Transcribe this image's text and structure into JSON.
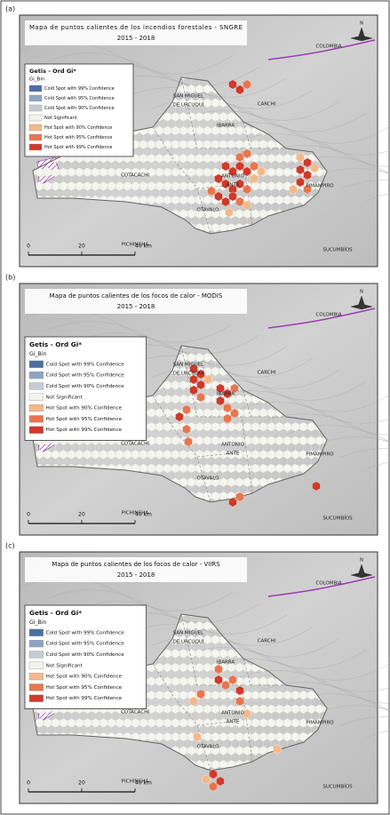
{
  "panels": [
    {
      "label": "(a)",
      "title": "Mapa de puntos calientes de los incendios forestales - SNGRE",
      "subtitle": "2015 - 2018",
      "legend": {
        "title": "Getis - Ord Gi*",
        "field": "Gi_Bin",
        "items": [
          {
            "label": "Cold Spot with 99% Confidence",
            "color": "#4a6fa5"
          },
          {
            "label": "Cold Spot with 95% Confidence",
            "color": "#8ea4c2"
          },
          {
            "label": "Cold Spot with 90% Confidence",
            "color": "#c4cdd6"
          },
          {
            "label": "Not Significant",
            "color": "#f4f4ee"
          },
          {
            "label": "Hot Spot with 90% Confidence",
            "color": "#f4b98a"
          },
          {
            "label": "Hot Spot with 95% Confidence",
            "color": "#e7764e"
          },
          {
            "label": "Hot Spot with 99% Confidence",
            "color": "#cf3a2a"
          }
        ]
      },
      "places": [
        "COLOMBIA",
        "SAN MIGUEL",
        "DE URCUQUÍ",
        "IBARRA",
        "CARCHI",
        "COTACACHI",
        "ANTONIO",
        "ANTE",
        "PIMAMPIRO",
        "OTAVALO",
        "PICHINCHA",
        "SUCUMBÍOS"
      ],
      "scale": [
        "0",
        "20",
        "40 km"
      ],
      "north": "N"
    },
    {
      "label": "(b)",
      "title": "Mapa de puntos calientes de los focos de calor - MODIS",
      "subtitle": "2015 - 2018",
      "legend": {
        "title": "Getis - Ord Gi*",
        "field": "Gi_Bin",
        "items": [
          {
            "label": "Cold Spot with 99% Confidence",
            "color": "#4a6fa5"
          },
          {
            "label": "Cold Spot with 95% Confidence",
            "color": "#8ea4c2"
          },
          {
            "label": "Cold Spot with 90% Confidence",
            "color": "#c4cdd6"
          },
          {
            "label": "Not Significant",
            "color": "#f4f4ee"
          },
          {
            "label": "Hot Spot with 90% Confidence",
            "color": "#f4b98a"
          },
          {
            "label": "Hot Spot with 95% Confidence",
            "color": "#e7764e"
          },
          {
            "label": "Hot Spot with 99% Confidence",
            "color": "#cf3a2a"
          }
        ]
      },
      "places": [
        "COLOMBIA",
        "SAN MIGUEL",
        "DE URCUQUÍ",
        "IBARRA",
        "CARCHI",
        "COTACACHI",
        "ANTONIO",
        "ANTE",
        "PIMAMPIRO",
        "OTAVALO",
        "PICHINCHA",
        "SUCUMBÍOS"
      ],
      "scale": [
        "0",
        "20",
        "40 km"
      ],
      "north": "N"
    },
    {
      "label": "(c)",
      "title": "Mapa de puntos calientes de los focos de calor - VIIRS",
      "subtitle": "2015 - 2018",
      "legend": {
        "title": "Getis - Ord Gi*",
        "field": "Gi_Bin",
        "items": [
          {
            "label": "Cold Spot with 99% Confidence",
            "color": "#4a6fa5"
          },
          {
            "label": "Cold Spot with 95% Confidence",
            "color": "#8ea4c2"
          },
          {
            "label": "Cold Spot with 90% Confidence",
            "color": "#c4cdd6"
          },
          {
            "label": "Not Significant",
            "color": "#f4f4ee"
          },
          {
            "label": "Hot Spot with 90% Confidence",
            "color": "#f4b98a"
          },
          {
            "label": "Hot Spot with 95% Confidence",
            "color": "#e7764e"
          },
          {
            "label": "Hot Spot with 99% Confidence",
            "color": "#cf3a2a"
          }
        ]
      },
      "places": [
        "COLOMBIA",
        "SAN MIGUEL",
        "DE URCUQUÍ",
        "IBARRA",
        "CARCHI",
        "COTACACHI",
        "ANTONIO",
        "ANTE",
        "PIMAMPIRO",
        "OTAVALO",
        "PICHINCHA",
        "SUCUMBÍOS"
      ],
      "scale": [
        "0",
        "20",
        "40 km"
      ],
      "north": "N"
    }
  ]
}
